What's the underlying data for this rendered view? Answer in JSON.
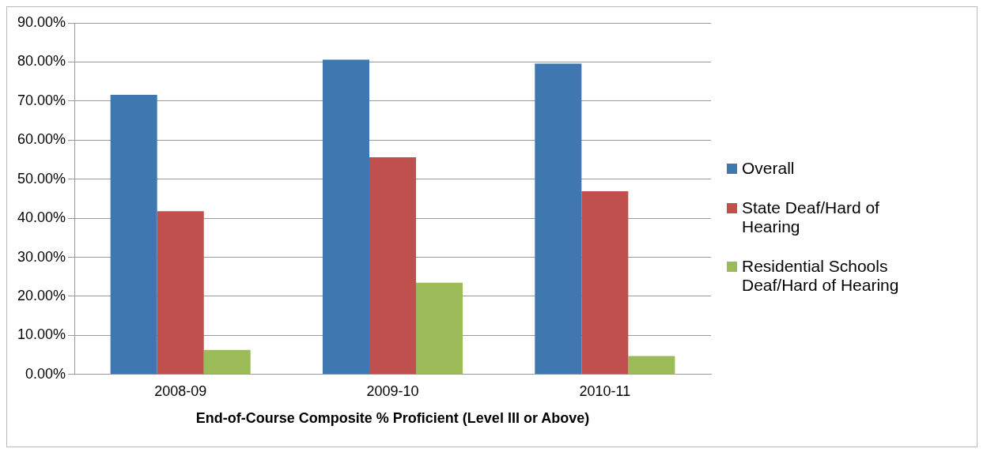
{
  "chart_data": {
    "type": "bar",
    "xlabel": "End-of-Course Composite % Proficient (Level III or Above)",
    "categories": [
      "2008-09",
      "2009-10",
      "2010-11"
    ],
    "series": [
      {
        "name": "Overall",
        "color": "#3f77b0",
        "values": [
          71.6,
          80.6,
          79.6
        ]
      },
      {
        "name": "State Deaf/Hard of Hearing",
        "color": "#c0504d",
        "values": [
          41.8,
          55.6,
          46.9
        ]
      },
      {
        "name": "Residential Schools Deaf/Hard of Hearing",
        "color": "#9bbb59",
        "values": [
          6.3,
          23.5,
          4.7
        ]
      }
    ],
    "ylim": [
      0,
      90
    ],
    "yticks": [
      {
        "value": 0,
        "label": "0.00%"
      },
      {
        "value": 10,
        "label": "10.00%"
      },
      {
        "value": 20,
        "label": "20.00%"
      },
      {
        "value": 30,
        "label": "30.00%"
      },
      {
        "value": 40,
        "label": "40.00%"
      },
      {
        "value": 50,
        "label": "50.00%"
      },
      {
        "value": 60,
        "label": "60.00%"
      },
      {
        "value": 70,
        "label": "70.00%"
      },
      {
        "value": 80,
        "label": "80.00%"
      },
      {
        "value": 90,
        "label": "90.00%"
      }
    ],
    "grid": "y",
    "legend": "right"
  }
}
